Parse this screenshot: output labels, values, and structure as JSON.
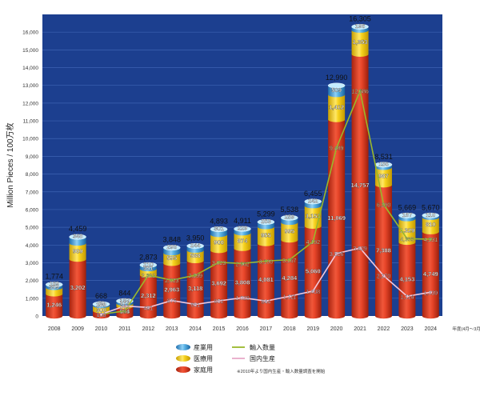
{
  "chart_data": {
    "type": "bar",
    "ylabel": "Million Pieces / 100万枚",
    "ylim": [
      0,
      17000
    ],
    "y_ticks": [
      0,
      1000,
      2000,
      3000,
      4000,
      5000,
      6000,
      7000,
      8000,
      9000,
      10000,
      11000,
      12000,
      13000,
      14000,
      15000,
      16000
    ],
    "y_tick_labels": [
      "0",
      "1,000",
      "2,000",
      "3,000",
      "4,000",
      "5,000",
      "6,000",
      "7,000",
      "8,000",
      "9,000",
      "10,000",
      "11,000",
      "12,000",
      "13,000",
      "14,000",
      "15,000",
      "16,000"
    ],
    "categories": [
      "2008",
      "2009",
      "2010",
      "2011",
      "2012",
      "2013",
      "2014",
      "2015",
      "2016",
      "2017",
      "2018",
      "2019",
      "2020",
      "2021",
      "2022",
      "2023",
      "2024"
    ],
    "fiscal_note": "年度(4月～3月)",
    "totals": [
      "1,774",
      "4,459",
      "668",
      "844",
      "2,873",
      "3,848",
      "3,950",
      "4,893",
      "4,911",
      "5,299",
      "5,538",
      "6,455",
      "12,990",
      "16,305",
      "8,531",
      "5,669",
      "5,670"
    ],
    "total_values": [
      1774,
      4459,
      668,
      844,
      2873,
      3848,
      3950,
      4893,
      4911,
      5299,
      5538,
      6455,
      12990,
      16305,
      8531,
      5669,
      5670
    ],
    "series": [
      {
        "name": "家庭用",
        "color": "#d63a1f",
        "values": [
          1246,
          3202,
          300,
          544,
          2312,
          2963,
          3118,
          3692,
          3808,
          4081,
          4284,
          5060,
          11069,
          14757,
          7388,
          4153,
          4749
        ],
        "labels": [
          "1,246",
          "3,202",
          "300",
          "544",
          "2,312",
          "2,963",
          "3,118",
          "3,692",
          "3,808",
          "4,081",
          "4,284",
          "5,060",
          "11,069",
          "14,757",
          "7,388",
          "4,153",
          "4,749"
        ]
      },
      {
        "name": "医療用",
        "color": "#f2c81e",
        "values": [
          359,
          909,
          289,
          173,
          351,
          595,
          588,
          900,
          874,
          955,
          995,
          1153,
          1412,
          1353,
          987,
          1329,
          810
        ],
        "labels": [
          "359",
          "909",
          "289",
          "173",
          "351",
          "595",
          "588",
          "900",
          "874",
          "955",
          "995",
          "1,153",
          "1,412",
          "1,353",
          "987",
          "1,329",
          "810"
        ]
      },
      {
        "name": "産業用",
        "color": "#4aa6dc",
        "values": [
          169,
          348,
          79,
          127,
          210,
          290,
          244,
          301,
          229,
          263,
          259,
          242,
          509,
          196,
          156,
          187,
          110
        ],
        "labels": [
          "169",
          "348",
          "79",
          "127",
          "210",
          "290",
          "244",
          "301",
          "229",
          "263",
          "259",
          "242",
          "509",
          "196",
          "156",
          "187",
          "110"
        ]
      }
    ],
    "line_series": [
      {
        "name": "輸入数量",
        "color": "#9ab82a",
        "values": [
          null,
          null,
          100,
          281,
          2302,
          2023,
          2299,
          3023,
          2962,
          3100,
          3167,
          4192,
          9489,
          12686,
          6290,
          4355,
          4331
        ],
        "labels": [
          "",
          "",
          "100",
          "281",
          "2,302",
          "2,023",
          "2,299",
          "3,023",
          "2,962",
          "3,100",
          "3,167",
          "4,192",
          "9,489",
          "12,686",
          "6,290",
          "4,355",
          "4,331"
        ]
      },
      {
        "name": "国内生産",
        "color": "#f2c8dc",
        "values": [
          null,
          null,
          100,
          563,
          481,
          875,
          651,
          852,
          1029,
          844,
          1111,
          1408,
          3526,
          3829,
          2270,
          1114,
          1339
        ],
        "labels": [
          "",
          "",
          "100",
          "563",
          "481",
          "875",
          "651",
          "852",
          "1,029",
          "844",
          "1,111",
          "1,408",
          "3,526",
          "3,829",
          "2,270",
          "1,114",
          "1,339"
        ]
      }
    ],
    "legend": {
      "items": [
        "産業用",
        "医療用",
        "家庭用",
        "輸入数量",
        "国内生産"
      ],
      "note": "※2010年より国内生産・輸入数量調査を開始"
    },
    "colors": {
      "plot_bg": "#1c3f8f",
      "grid": "#3d63b3",
      "axis": "#ffffff"
    }
  }
}
